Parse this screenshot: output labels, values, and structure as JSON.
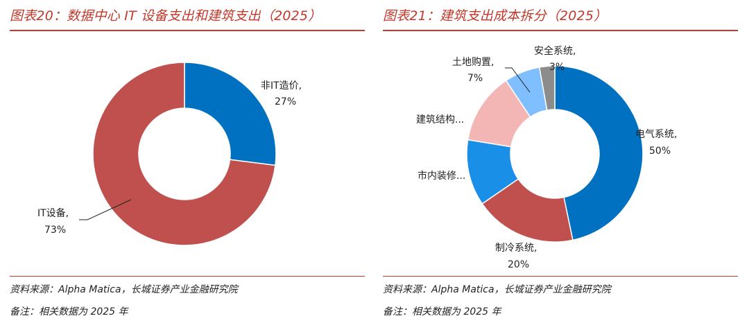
{
  "colors": {
    "accent": "#c0392b",
    "blue": "#0070c0",
    "red": "#c0504d",
    "pink": "#f4b6b4",
    "bright_blue": "#1a8fe8",
    "light_blue": "#7fbfff",
    "gray": "#8c8c8c"
  },
  "left": {
    "title": "图表20：数据中心 IT 设备支出和建筑支出（2025）",
    "source": "资料来源：Alpha Matica，长城证券产业金融研究院",
    "remark": "备注：相关数据为 2025 年"
  },
  "right": {
    "title": "图表21：建筑支出成本拆分（2025）",
    "source": "资料来源：Alpha Matica，长城证券产业金融研究院",
    "remark": "备注：相关数据为 2025 年"
  },
  "chart_data": [
    {
      "type": "pie",
      "variant": "donut",
      "title": "图表20：数据中心 IT 设备支出和建筑支出（2025）",
      "slices": [
        {
          "name": "非IT造价",
          "value": 27,
          "label": "非IT造价,",
          "pct_label": "27%",
          "color": "#0070c0"
        },
        {
          "name": "IT设备",
          "value": 73,
          "label": "IT设备,",
          "pct_label": "73%",
          "color": "#c0504d"
        }
      ]
    },
    {
      "type": "pie",
      "variant": "donut",
      "title": "图表21：建筑支出成本拆分（2025）",
      "slices": [
        {
          "name": "电气系统",
          "value": 50,
          "label": "电气系统,",
          "pct_label": "50%",
          "color": "#0070c0"
        },
        {
          "name": "制冷系统",
          "value": 20,
          "label": "制冷系统,",
          "pct_label": "20%",
          "color": "#c0504d"
        },
        {
          "name": "市内装修",
          "value": 13,
          "label": "市内装修...",
          "pct_label": "",
          "color": "#1a8fe8"
        },
        {
          "name": "建筑结构",
          "value": 14,
          "label": "建筑结构...",
          "pct_label": "",
          "color": "#f4b6b4"
        },
        {
          "name": "土地购置",
          "value": 7,
          "label": "土地购置,",
          "pct_label": "7%",
          "color": "#7fbfff"
        },
        {
          "name": "安全系统",
          "value": 3,
          "label": "安全系统,",
          "pct_label": "3%",
          "color": "#8c8c8c"
        }
      ]
    }
  ]
}
